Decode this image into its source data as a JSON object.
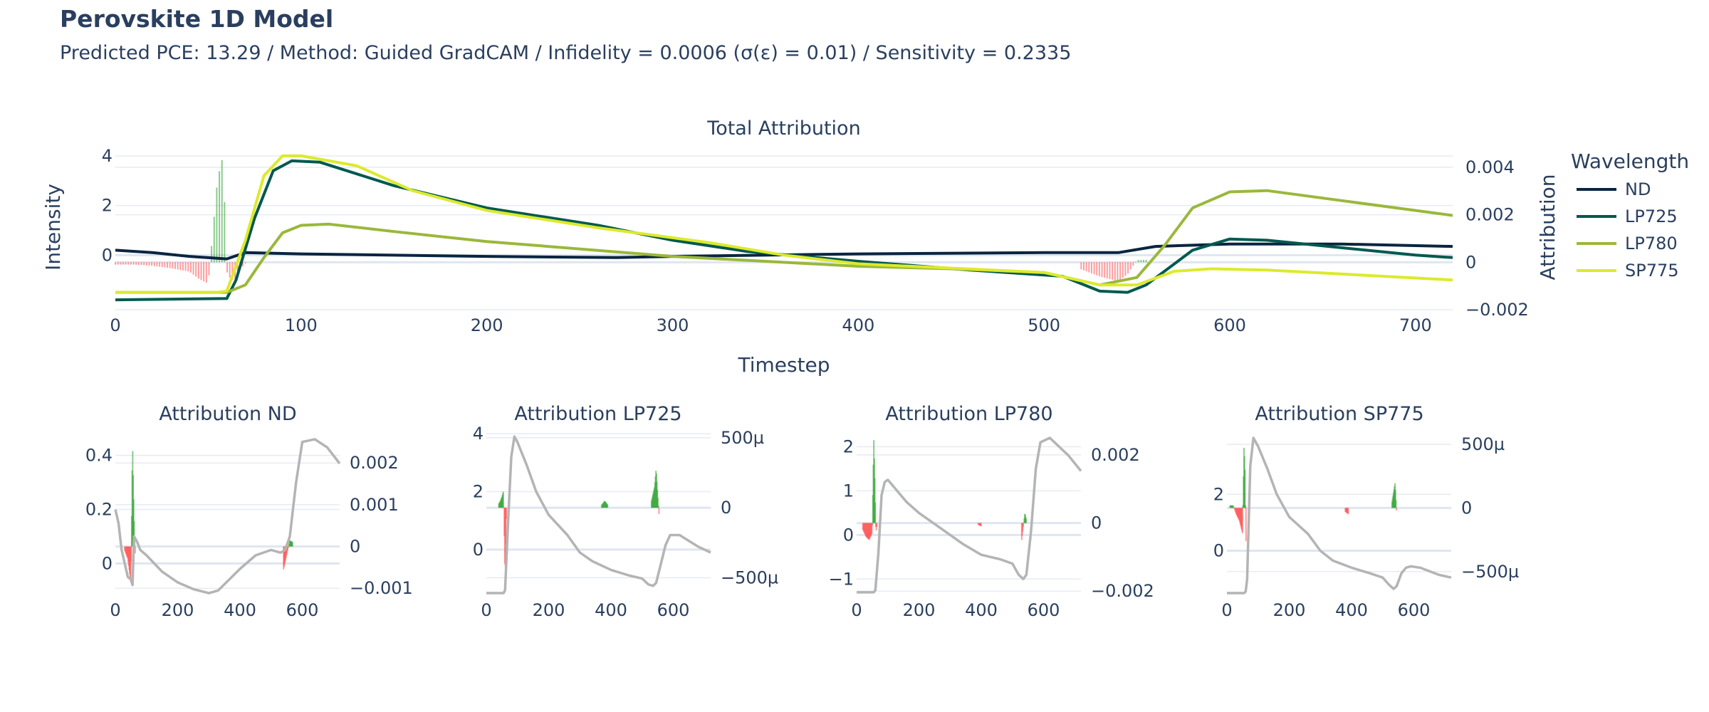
{
  "header": {
    "title": "Perovskite 1D Model",
    "subtitle": "Predicted PCE: 13.29 / Method: Guided GradCAM / Infidelity = 0.0006 (σ(ε) = 0.01) / Sensitivity = 0.2335"
  },
  "colors": {
    "text": "#2a3f5f",
    "grid": "#e6ebf3",
    "positive_attr": "#2ca02c",
    "negative_attr": "#ff4d4d",
    "subplot_line": "#b4b4b4"
  },
  "legend": {
    "title": "Wavelength",
    "items": [
      {
        "name": "ND",
        "color": "#0a2540"
      },
      {
        "name": "LP725",
        "color": "#02594f"
      },
      {
        "name": "LP780",
        "color": "#9ab83a"
      },
      {
        "name": "SP775",
        "color": "#dcea2c"
      }
    ]
  },
  "chart_data": [
    {
      "id": "main",
      "type": "line",
      "title": "Total Attribution",
      "xlabel": "Timestep",
      "ylabel": "Intensity",
      "ylabel_right": "Attribution",
      "xlim": [
        0,
        720
      ],
      "ylim": [
        -2.2,
        4.4
      ],
      "ylim_right": [
        -0.002,
        0.0049
      ],
      "xticks": [
        {
          "v": 0,
          "l": "0"
        },
        {
          "v": 100,
          "l": "100"
        },
        {
          "v": 200,
          "l": "200"
        },
        {
          "v": 300,
          "l": "300"
        },
        {
          "v": 400,
          "l": "400"
        },
        {
          "v": 500,
          "l": "500"
        },
        {
          "v": 600,
          "l": "600"
        },
        {
          "v": 700,
          "l": "700"
        }
      ],
      "yticks": [
        {
          "v": 0,
          "l": "0"
        },
        {
          "v": 2,
          "l": "2"
        },
        {
          "v": 4,
          "l": "4"
        }
      ],
      "yticks_right": [
        {
          "v": -0.002,
          "l": "−0.002"
        },
        {
          "v": 0,
          "l": "0"
        },
        {
          "v": 0.002,
          "l": "0.002"
        },
        {
          "v": 0.004,
          "l": "0.004"
        }
      ],
      "series": [
        {
          "name": "ND",
          "x": [
            0,
            20,
            40,
            60,
            70,
            100,
            200,
            270,
            300,
            400,
            500,
            540,
            560,
            600,
            660,
            720
          ],
          "y": [
            0.2,
            0.1,
            -0.05,
            -0.15,
            0.1,
            0.05,
            -0.05,
            -0.1,
            -0.05,
            0.05,
            0.1,
            0.1,
            0.35,
            0.45,
            0.45,
            0.35
          ]
        },
        {
          "name": "LP725",
          "x": [
            0,
            60,
            65,
            75,
            85,
            95,
            110,
            150,
            200,
            260,
            300,
            340,
            400,
            460,
            510,
            530,
            545,
            555,
            580,
            600,
            620,
            660,
            700,
            720
          ],
          "y": [
            -1.8,
            -1.75,
            -1.0,
            1.5,
            3.4,
            3.8,
            3.75,
            2.8,
            1.9,
            1.2,
            0.6,
            0.15,
            -0.25,
            -0.6,
            -0.85,
            -1.45,
            -1.5,
            -1.2,
            0.2,
            0.65,
            0.6,
            0.3,
            0.0,
            -0.1
          ]
        },
        {
          "name": "LP780",
          "x": [
            0,
            60,
            70,
            80,
            90,
            100,
            115,
            150,
            200,
            300,
            350,
            400,
            450,
            500,
            530,
            550,
            565,
            580,
            600,
            620,
            660,
            720
          ],
          "y": [
            -1.5,
            -1.5,
            -1.2,
            -0.1,
            0.9,
            1.2,
            1.25,
            0.95,
            0.55,
            -0.05,
            -0.25,
            -0.45,
            -0.55,
            -0.7,
            -1.2,
            -0.9,
            0.4,
            1.9,
            2.55,
            2.6,
            2.2,
            1.6
          ]
        },
        {
          "name": "SP775",
          "x": [
            0,
            55,
            60,
            70,
            80,
            90,
            100,
            130,
            160,
            200,
            260,
            320,
            360,
            400,
            500,
            530,
            550,
            570,
            590,
            620,
            720
          ],
          "y": [
            -1.5,
            -1.5,
            -1.45,
            0.6,
            3.2,
            4.0,
            4.0,
            3.6,
            2.6,
            1.8,
            1.1,
            0.5,
            0.0,
            -0.35,
            -0.7,
            -1.2,
            -1.2,
            -0.65,
            -0.55,
            -0.6,
            -1.0
          ]
        }
      ],
      "attr_x": [
        0,
        10,
        20,
        30,
        40,
        45,
        50,
        55,
        58,
        60,
        62,
        64,
        66,
        70,
        520,
        530,
        540,
        545,
        550,
        555
      ],
      "attr_y": [
        -0.0001,
        -0.0001,
        -0.00015,
        -0.00025,
        -0.0004,
        -0.0007,
        -0.0009,
        0.0035,
        0.0045,
        -0.0004,
        -0.0007,
        -0.0008,
        -0.0004,
        -5e-05,
        -0.0003,
        -0.0006,
        -0.0008,
        -0.0005,
        0.0001,
        0.0001
      ]
    },
    {
      "id": "nd",
      "type": "line",
      "title": "Attribution ND",
      "xlim": [
        0,
        720
      ],
      "ylim": [
        -0.115,
        0.465
      ],
      "ylim_right": [
        -0.00115,
        0.0026
      ],
      "xticks": [
        {
          "v": 0,
          "l": "0"
        },
        {
          "v": 200,
          "l": "200"
        },
        {
          "v": 400,
          "l": "400"
        },
        {
          "v": 600,
          "l": "600"
        }
      ],
      "yticks": [
        {
          "v": 0,
          "l": "0"
        },
        {
          "v": 0.2,
          "l": "0.2"
        },
        {
          "v": 0.4,
          "l": "0.4"
        }
      ],
      "yticks_right": [
        {
          "v": -0.001,
          "l": "−0.001"
        },
        {
          "v": 0,
          "l": "0"
        },
        {
          "v": 0.001,
          "l": "0.001"
        },
        {
          "v": 0.002,
          "l": "0.002"
        }
      ],
      "series": [
        {
          "name": "ND",
          "x": [
            0,
            10,
            20,
            40,
            50,
            55,
            60,
            70,
            80,
            100,
            150,
            200,
            250,
            300,
            330,
            400,
            450,
            500,
            530,
            545,
            560,
            580,
            600,
            640,
            680,
            720
          ],
          "y": [
            0.2,
            0.15,
            0.05,
            -0.05,
            -0.06,
            -0.08,
            0.1,
            0.08,
            0.05,
            0.03,
            -0.03,
            -0.07,
            -0.095,
            -0.11,
            -0.1,
            -0.02,
            0.03,
            0.05,
            0.04,
            0.05,
            0.1,
            0.3,
            0.45,
            0.46,
            0.43,
            0.37
          ]
        }
      ],
      "attr_x": [
        30,
        40,
        50,
        55,
        60,
        65,
        540,
        560,
        570
      ],
      "attr_y": [
        -0.0001,
        -0.0003,
        -0.0009,
        0.0025,
        0.0007,
        -0.0005,
        -0.00055,
        0.00015,
        0.0001
      ]
    },
    {
      "id": "lp725",
      "type": "line",
      "title": "Attribution LP725",
      "xlim": [
        0,
        720
      ],
      "ylim": [
        -1.55,
        4.1
      ],
      "ylim_right": [
        -0.00062,
        0.00055
      ],
      "xticks": [
        {
          "v": 0,
          "l": "0"
        },
        {
          "v": 200,
          "l": "200"
        },
        {
          "v": 400,
          "l": "400"
        },
        {
          "v": 600,
          "l": "600"
        }
      ],
      "yticks": [
        {
          "v": 0,
          "l": "0"
        },
        {
          "v": 2,
          "l": "2"
        },
        {
          "v": 4,
          "l": "4"
        }
      ],
      "yticks_right": [
        {
          "v": -0.0005,
          "l": "−500µ"
        },
        {
          "v": 0,
          "l": "0"
        },
        {
          "v": 0.0005,
          "l": "500µ"
        }
      ],
      "series": [
        {
          "name": "LP725",
          "x": [
            0,
            55,
            60,
            70,
            80,
            90,
            100,
            130,
            160,
            200,
            260,
            300,
            340,
            400,
            460,
            500,
            520,
            535,
            545,
            560,
            575,
            590,
            620,
            680,
            720
          ],
          "y": [
            -1.5,
            -1.5,
            -1.4,
            1.0,
            3.2,
            3.9,
            3.7,
            2.9,
            2.0,
            1.2,
            0.5,
            -0.1,
            -0.4,
            -0.7,
            -0.9,
            -1.0,
            -1.2,
            -1.25,
            -1.15,
            -0.5,
            0.15,
            0.5,
            0.5,
            0.1,
            -0.1
          ]
        },
        {
          "name": "LP725",
          "x": [
            0,
            720
          ],
          "y": [
            0,
            0
          ]
        }
      ],
      "attr_x": [
        40,
        45,
        50,
        55,
        60,
        62,
        65,
        370,
        380,
        390,
        530,
        540,
        545,
        555
      ],
      "attr_y": [
        3e-05,
        5e-05,
        8e-05,
        0.00012,
        -0.0005,
        -0.0003,
        3e-05,
        2e-05,
        5e-05,
        2e-05,
        5e-05,
        0.00015,
        0.00028,
        -8e-05
      ]
    },
    {
      "id": "lp780",
      "type": "line",
      "title": "Attribution LP780",
      "xlim": [
        0,
        720
      ],
      "ylim": [
        -1.35,
        2.2
      ],
      "ylim_right": [
        -0.0021,
        0.0025
      ],
      "xticks": [
        {
          "v": 0,
          "l": "0"
        },
        {
          "v": 200,
          "l": "200"
        },
        {
          "v": 400,
          "l": "400"
        },
        {
          "v": 600,
          "l": "600"
        }
      ],
      "yticks": [
        {
          "v": -1,
          "l": "−1"
        },
        {
          "v": 0,
          "l": "0"
        },
        {
          "v": 1,
          "l": "1"
        },
        {
          "v": 2,
          "l": "2"
        }
      ],
      "yticks_right": [
        {
          "v": -0.002,
          "l": "−0.002"
        },
        {
          "v": 0,
          "l": "0"
        },
        {
          "v": 0.002,
          "l": "0.002"
        }
      ],
      "series": [
        {
          "name": "LP780",
          "x": [
            0,
            55,
            60,
            70,
            80,
            90,
            100,
            130,
            160,
            200,
            260,
            300,
            340,
            400,
            460,
            500,
            520,
            535,
            545,
            560,
            575,
            590,
            620,
            680,
            720
          ],
          "y": [
            -1.3,
            -1.3,
            -1.25,
            -0.4,
            0.9,
            1.2,
            1.25,
            1.0,
            0.75,
            0.5,
            0.2,
            0.0,
            -0.2,
            -0.45,
            -0.55,
            -0.65,
            -0.9,
            -1.0,
            -0.9,
            0.1,
            1.5,
            2.1,
            2.2,
            1.8,
            1.45
          ]
        },
        {
          "name": "LP780",
          "x": [
            0,
            720
          ],
          "y": [
            0,
            0
          ]
        }
      ],
      "attr_x": [
        20,
        30,
        40,
        50,
        55,
        58,
        62,
        65,
        390,
        400,
        530,
        540,
        545
      ],
      "attr_y": [
        -0.0002,
        -0.0004,
        -0.0005,
        -0.0003,
        0.0025,
        0.0015,
        -0.0003,
        -0.0001,
        -5e-05,
        -0.0001,
        -0.0005,
        0.0003,
        0.0001
      ]
    },
    {
      "id": "sp775",
      "type": "line",
      "title": "Attribution SP775",
      "xlim": [
        0,
        720
      ],
      "ylim": [
        -1.55,
        4.0
      ],
      "ylim_right": [
        -0.00068,
        0.00055
      ],
      "xticks": [
        {
          "v": 0,
          "l": "0"
        },
        {
          "v": 200,
          "l": "200"
        },
        {
          "v": 400,
          "l": "400"
        },
        {
          "v": 600,
          "l": "600"
        }
      ],
      "yticks": [
        {
          "v": 0,
          "l": "0"
        },
        {
          "v": 2,
          "l": "2"
        }
      ],
      "yticks_right": [
        {
          "v": -0.0005,
          "l": "−500µ"
        },
        {
          "v": 0,
          "l": "0"
        },
        {
          "v": 0.0005,
          "l": "500µ"
        }
      ],
      "series": [
        {
          "name": "SP775",
          "x": [
            0,
            55,
            60,
            65,
            70,
            75,
            85,
            100,
            130,
            160,
            200,
            260,
            300,
            340,
            400,
            460,
            500,
            520,
            535,
            545,
            560,
            575,
            590,
            620,
            680,
            720
          ],
          "y": [
            -1.5,
            -1.5,
            -1.45,
            -1.0,
            1.0,
            3.0,
            4.0,
            3.7,
            2.9,
            2.0,
            1.2,
            0.6,
            0.0,
            -0.35,
            -0.6,
            -0.8,
            -0.95,
            -1.2,
            -1.35,
            -1.25,
            -0.8,
            -0.6,
            -0.55,
            -0.6,
            -0.85,
            -0.95
          ]
        },
        {
          "name": "SP775",
          "x": [
            0,
            720
          ],
          "y": [
            0,
            0
          ]
        }
      ],
      "attr_x": [
        10,
        20,
        30,
        40,
        50,
        55,
        58,
        62,
        380,
        390,
        530,
        540,
        545
      ],
      "attr_y": [
        2e-05,
        2e-05,
        -5e-05,
        -0.0001,
        -0.0002,
        0.0005,
        0.0003,
        -0.0004,
        -3e-05,
        -5e-05,
        5e-05,
        0.0002,
        -5e-05
      ]
    }
  ]
}
